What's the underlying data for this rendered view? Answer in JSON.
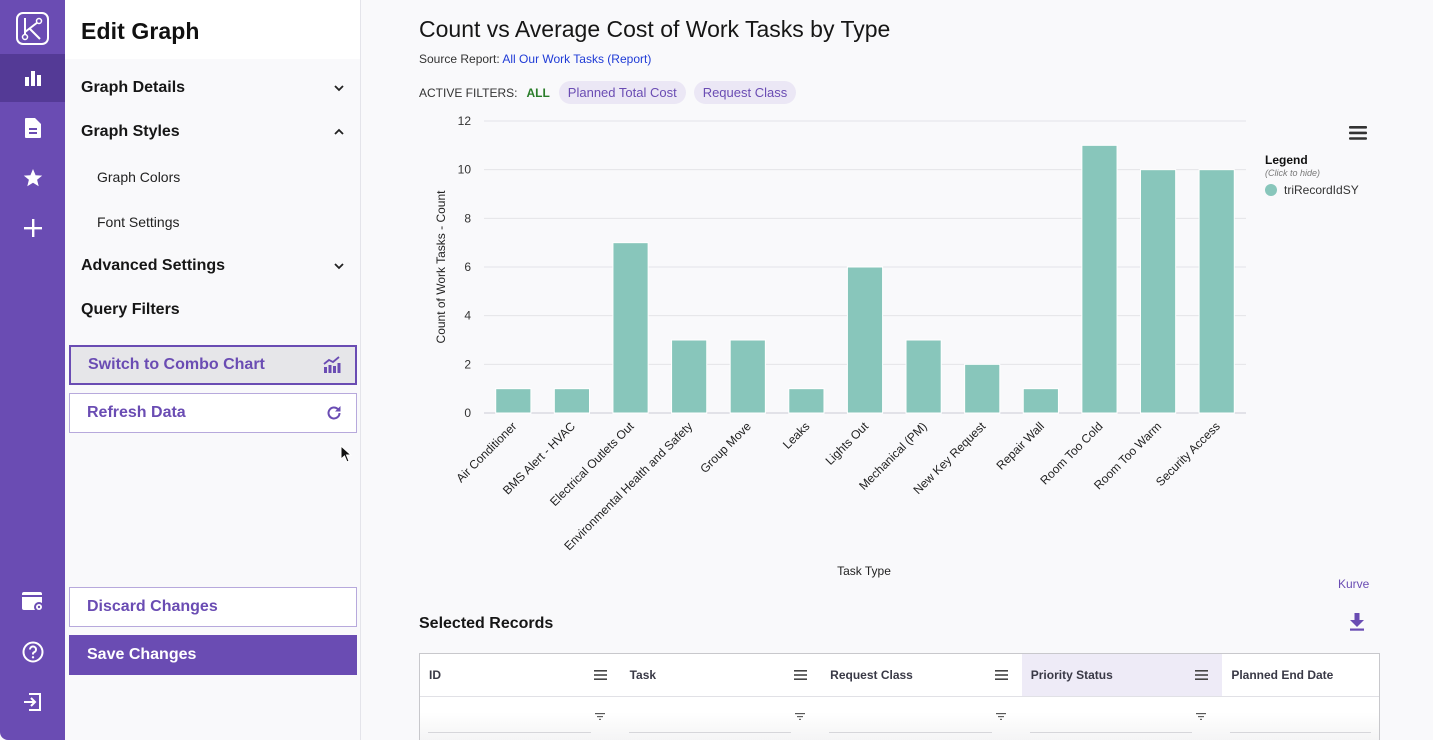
{
  "rail": {
    "items": [
      {
        "name": "charts",
        "icon": "bar-chart-icon",
        "active": true
      },
      {
        "name": "reports",
        "icon": "document-icon",
        "active": false
      },
      {
        "name": "favorites",
        "icon": "star-icon",
        "active": false
      },
      {
        "name": "create",
        "icon": "plus-icon",
        "active": false
      }
    ],
    "bottom_items": [
      {
        "name": "settings",
        "icon": "window-settings-icon"
      },
      {
        "name": "help",
        "icon": "help-icon"
      },
      {
        "name": "logout",
        "icon": "logout-icon"
      }
    ]
  },
  "panel": {
    "title": "Edit Graph",
    "sections": [
      {
        "label": "Graph Details",
        "state": "collapsed"
      },
      {
        "label": "Graph Styles",
        "state": "expanded"
      },
      {
        "label": "Advanced Settings",
        "state": "collapsed"
      },
      {
        "label": "Query Filters",
        "state": "none"
      }
    ],
    "subitems": [
      "Graph Colors",
      "Font Settings"
    ],
    "buttons": {
      "combo": "Switch to Combo Chart",
      "refresh": "Refresh Data",
      "discard": "Discard Changes",
      "save": "Save Changes"
    }
  },
  "main": {
    "title": "Count vs Average Cost of Work Tasks by Type",
    "source_label": "Source Report:",
    "source_link": "All Our Work Tasks (Report)",
    "filters_label": "ACTIVE FILTERS:",
    "filters_all": "ALL",
    "filter_chips": [
      "Planned Total Cost",
      "Request Class"
    ],
    "legend_title": "Legend",
    "legend_hint": "(Click to hide)",
    "credit": "Kurve",
    "selected_records_title": "Selected Records",
    "table_columns": [
      "ID",
      "Task",
      "Request Class",
      "Priority Status",
      "Planned End Date"
    ],
    "highlighted_column": "Priority Status"
  },
  "colors": {
    "brand": "#6a4cb3",
    "bar": "#88c6bb",
    "filter_all": "#2a7d2a",
    "link": "#1f3bd6"
  },
  "chart_data": {
    "type": "bar",
    "title": "Count vs Average Cost of Work Tasks by Type",
    "xlabel": "Task Type",
    "ylabel": "Count of Work Tasks - Count",
    "ylim": [
      0,
      12
    ],
    "yticks": [
      0,
      2,
      4,
      6,
      8,
      10,
      12
    ],
    "grid": true,
    "legend_position": "right",
    "categories": [
      "Air Conditioner",
      "BMS Alert - HVAC",
      "Electrical Outlets Out",
      "Environmental Health and Safety",
      "Group Move",
      "Leaks",
      "Lights Out",
      "Mechanical (PM)",
      "New Key Request",
      "Repair Wall",
      "Room Too Cold",
      "Room Too Warm",
      "Security Access"
    ],
    "series": [
      {
        "name": "triRecordIdSY",
        "values": [
          1,
          1,
          7,
          3,
          3,
          1,
          6,
          3,
          2,
          1,
          11,
          10,
          10
        ]
      }
    ]
  }
}
